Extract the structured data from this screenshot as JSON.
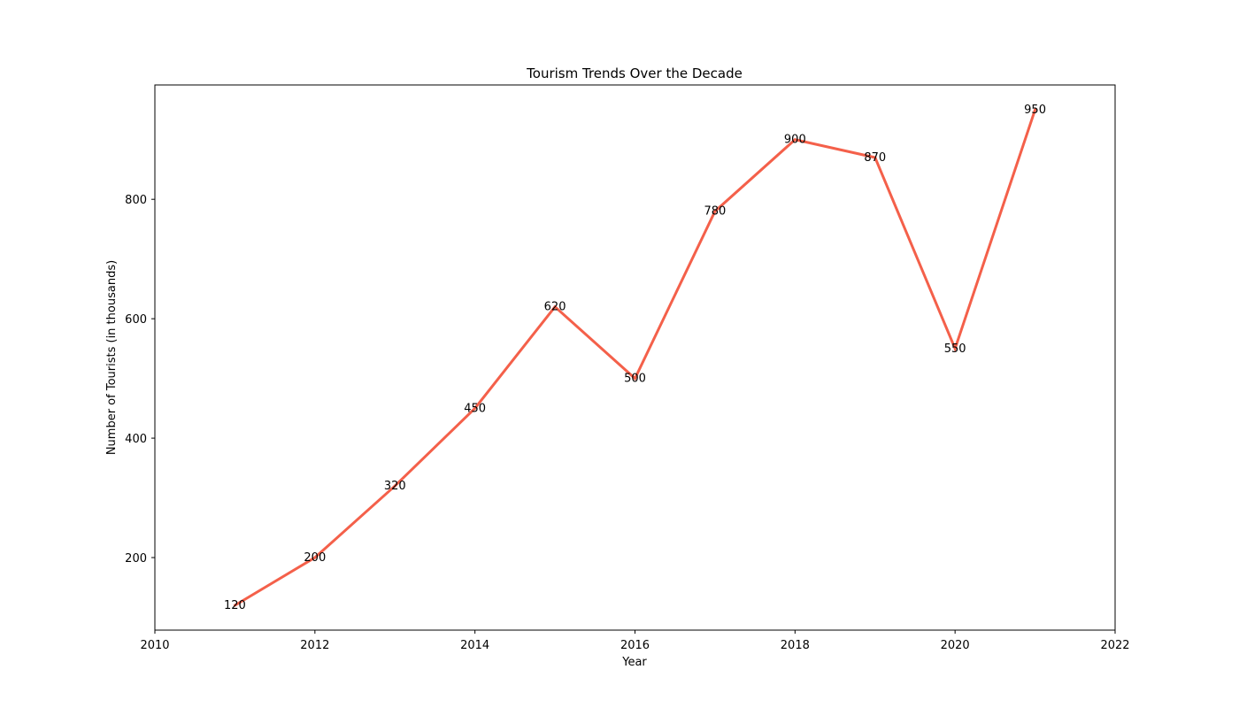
{
  "chart_data": {
    "type": "line",
    "title": "Tourism Trends Over the Decade",
    "xlabel": "Year",
    "ylabel": "Number of Tourists (in thousands)",
    "xlim": [
      2010,
      2022
    ],
    "ylim": [
      78.5,
      991.5
    ],
    "x_ticks": [
      2010,
      2012,
      2014,
      2016,
      2018,
      2020,
      2022
    ],
    "y_ticks": [
      200,
      400,
      600,
      800
    ],
    "grid": false,
    "series": [
      {
        "color": "#f4604a",
        "x": [
          2011,
          2012,
          2013,
          2014,
          2015,
          2016,
          2017,
          2018,
          2019,
          2020,
          2021
        ],
        "values": [
          120,
          200,
          320,
          450,
          620,
          500,
          780,
          900,
          870,
          550,
          950
        ]
      }
    ]
  }
}
